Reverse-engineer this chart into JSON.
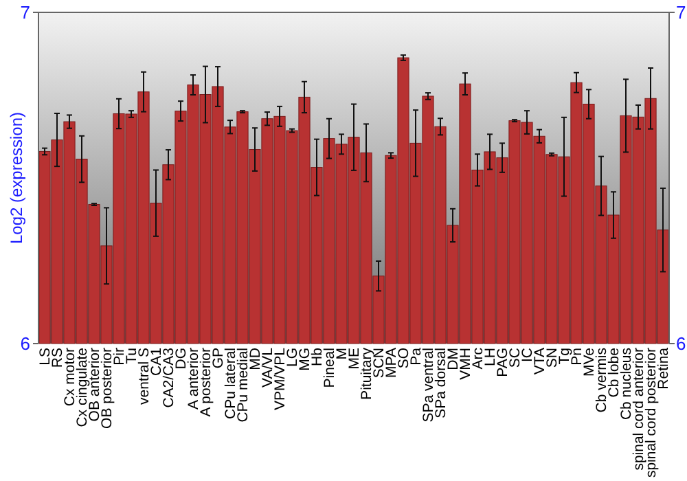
{
  "chart_data": {
    "type": "bar",
    "ylabel": "Log2 (expression)",
    "categories": [
      "LS",
      "RS",
      "Cx motor",
      "Cx cingulate",
      "OB anterior",
      "OB posterior",
      "Pir",
      "Tu",
      "ventral S",
      "CA1",
      "CA2/CA3",
      "DG",
      "A anterior",
      "A posterior",
      "GP",
      "CPu lateral",
      "CPu medial",
      "MD",
      "VA/VL",
      "VPM/VPL",
      "LG",
      "MG",
      "Hb",
      "Pineal",
      "M",
      "ME",
      "Pituitary",
      "SCN",
      "MPA",
      "SO",
      "Pa",
      "SPa ventral",
      "SPa dorsal",
      "DM",
      "VMH",
      "Arc",
      "LH",
      "PAG",
      "SC",
      "IC",
      "VTA",
      "SN",
      "Tg",
      "Pn",
      "MVe",
      "Cb vermis",
      "Cb lobe",
      "Cb nucleus",
      "spinal cord anterior",
      "spinal cord posterior",
      "Retina"
    ],
    "values": [
      6.58,
      6.615,
      6.67,
      6.557,
      6.42,
      6.295,
      6.694,
      6.693,
      6.76,
      6.424,
      6.54,
      6.702,
      6.781,
      6.752,
      6.776,
      6.654,
      6.7,
      6.586,
      6.679,
      6.686,
      6.643,
      6.744,
      6.532,
      6.619,
      6.602,
      6.623,
      6.576,
      6.204,
      6.568,
      6.863,
      6.605,
      6.747,
      6.655,
      6.357,
      6.784,
      6.524,
      6.579,
      6.561,
      6.673,
      6.668,
      6.626,
      6.571,
      6.564,
      6.788,
      6.723,
      6.476,
      6.388,
      6.688,
      6.684,
      6.74,
      6.343
    ],
    "errors": [
      0.01,
      0.08,
      0.02,
      0.07,
      0.003,
      0.115,
      0.045,
      0.01,
      0.06,
      0.1,
      0.045,
      0.03,
      0.03,
      0.085,
      0.06,
      0.02,
      0.003,
      0.065,
      0.02,
      0.03,
      0.005,
      0.047,
      0.085,
      0.06,
      0.03,
      0.1,
      0.087,
      0.045,
      0.008,
      0.008,
      0.1,
      0.01,
      0.025,
      0.05,
      0.033,
      0.048,
      0.053,
      0.044,
      0.003,
      0.035,
      0.02,
      0.004,
      0.119,
      0.03,
      0.044,
      0.089,
      0.07,
      0.11,
      0.036,
      0.092,
      0.126
    ],
    "color": "#b83232",
    "ylim": [
      6,
      7
    ],
    "yticks": [
      6,
      7
    ],
    "y2lim": [
      6,
      7
    ],
    "y2ticks": [
      6,
      7
    ],
    "grid": false
  }
}
